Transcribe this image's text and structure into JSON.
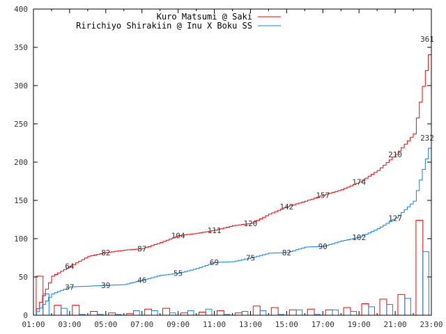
{
  "chart_data": {
    "type": "line",
    "title": "",
    "xlabel": "",
    "ylabel": "",
    "ylim": [
      0,
      400
    ],
    "y_ticks": [
      0,
      50,
      100,
      150,
      200,
      250,
      300,
      350,
      400
    ],
    "x_tick_labels": [
      "01:00",
      "03:00",
      "05:00",
      "07:00",
      "09:00",
      "11:00",
      "13:00",
      "15:00",
      "17:00",
      "19:00",
      "21:00",
      "23:00"
    ],
    "hours": [
      "01:00",
      "02:00",
      "03:00",
      "04:00",
      "05:00",
      "06:00",
      "07:00",
      "08:00",
      "09:00",
      "10:00",
      "11:00",
      "12:00",
      "13:00",
      "14:00",
      "15:00",
      "16:00",
      "17:00",
      "18:00",
      "19:00",
      "20:00",
      "21:00",
      "22:00"
    ],
    "legend_position": "top-center",
    "series": [
      {
        "name": "Kuro Matsumi @ Saki",
        "color": "#ff0000",
        "hourly": [
          51,
          13,
          13,
          5,
          3,
          2,
          8,
          9,
          3,
          4,
          6,
          3,
          12,
          10,
          7,
          8,
          7,
          10,
          15,
          21,
          27,
          124
        ],
        "cumulative_labels": [
          "64",
          "82",
          "87",
          "104",
          "111",
          "120",
          "142",
          "157",
          "174",
          "210",
          "361"
        ]
      },
      {
        "name": "Ririchiyo Shirakiin @ Inu X Boku SS",
        "color": "#0a7fff",
        "hourly": [
          28,
          9,
          1,
          1,
          1,
          6,
          6,
          3,
          6,
          8,
          1,
          5,
          6,
          1,
          7,
          1,
          7,
          5,
          11,
          14,
          22,
          83
        ],
        "cumulative_labels": [
          "37",
          "39",
          "46",
          "55",
          "69",
          "75",
          "82",
          "90",
          "102",
          "127",
          "232"
        ]
      }
    ]
  }
}
